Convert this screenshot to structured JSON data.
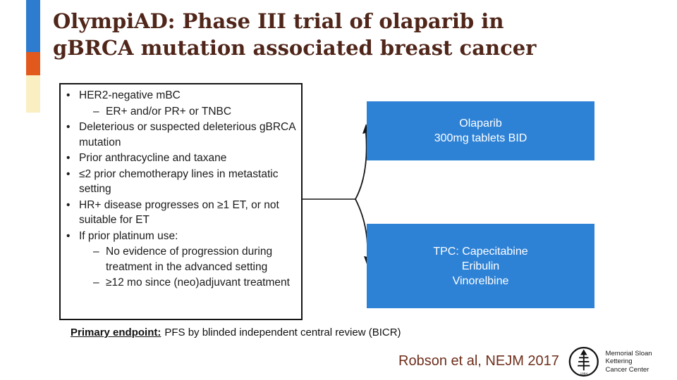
{
  "title": {
    "line1": "OlympiAD: Phase III trial of olaparib in",
    "line2": "gBRCA mutation associated breast cancer"
  },
  "eligibility": {
    "bullet_level1": "•",
    "bullet_level2": "–",
    "items": [
      {
        "level": 1,
        "text": "HER2-negative mBC"
      },
      {
        "level": 2,
        "text": "ER+ and/or PR+ or TNBC"
      },
      {
        "level": 1,
        "text": "Deleterious or suspected deleterious gBRCA mutation"
      },
      {
        "level": 1,
        "text": "Prior anthracycline and taxane"
      },
      {
        "level": 1,
        "text": "≤2 prior chemotherapy lines in metastatic setting"
      },
      {
        "level": 1,
        "text": "HR+ disease progresses on ≥1 ET, or not suitable for ET"
      },
      {
        "level": 1,
        "text": "If prior platinum use:"
      },
      {
        "level": 2,
        "text": "No evidence of progression during treatment in the advanced setting"
      },
      {
        "level": 2,
        "text": "≥12 mo since (neo)adjuvant treatment"
      }
    ]
  },
  "arms": {
    "olaparib": {
      "line1": "Olaparib",
      "line2": "300mg tablets BID"
    },
    "tpc": {
      "line1": "TPC: Capecitabine",
      "line2": "Eribulin",
      "line3": "Vinorelbine"
    }
  },
  "endpoint": {
    "label": "Primary endpoint:",
    "text": "PFS by blinded independent central review (BICR)"
  },
  "citation": "Robson et al, NEJM 2017",
  "logo": {
    "line1": "Memorial Sloan Kettering",
    "line2": "Cancer Center",
    "year": "1884"
  },
  "colors": {
    "accent_blue": "#2e7ccf",
    "accent_orange": "#e2591d",
    "accent_cream": "#faeec3",
    "arm_box_blue": "#2e82d6",
    "title_red": "#50261a",
    "citation_red": "#6e2e1b"
  }
}
